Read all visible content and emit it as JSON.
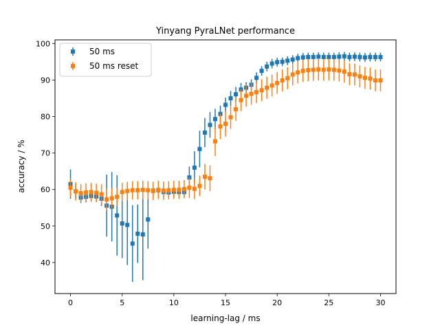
{
  "chart_data": {
    "type": "scatter",
    "title": "Yinyang PyraLNet performance",
    "xlabel": "learning-lag / ms",
    "ylabel": "accuracy / %",
    "xlim": [
      -1.5,
      31.5
    ],
    "ylim": [
      31.5,
      101
    ],
    "xticks": [
      0,
      5,
      10,
      15,
      20,
      25,
      30
    ],
    "yticks": [
      40,
      50,
      60,
      70,
      80,
      90,
      100
    ],
    "grid": false,
    "legend_position": "top-left",
    "series": [
      {
        "name": "50 ms",
        "color": "#1f77b4",
        "marker": "square",
        "x": [
          0,
          0.5,
          1,
          1.5,
          2,
          2.5,
          3,
          3.5,
          4,
          4.5,
          5,
          5.5,
          6,
          6.5,
          7,
          7.5,
          8,
          8.5,
          9,
          9.5,
          10,
          10.5,
          11,
          11.5,
          12,
          12.5,
          13,
          13.5,
          14,
          14.5,
          15,
          15.5,
          16,
          16.5,
          17,
          17.5,
          18,
          18.5,
          19,
          19.5,
          20,
          20.5,
          21,
          21.5,
          22,
          22.5,
          23,
          23.5,
          24,
          24.5,
          25,
          25.5,
          26,
          26.5,
          27,
          27.5,
          28,
          28.5,
          29,
          29.5,
          30
        ],
        "y": [
          61.5,
          59.5,
          57.8,
          58.0,
          58.2,
          58.1,
          57.5,
          55.6,
          55.3,
          52.9,
          50.7,
          50.3,
          45.2,
          47.9,
          47.7,
          51.8,
          59.7,
          59.8,
          59.3,
          59.2,
          59.4,
          59.3,
          59.3,
          63.3,
          66.0,
          71.1,
          75.6,
          77.7,
          79.3,
          80.7,
          83.2,
          85.0,
          86.1,
          87.4,
          87.9,
          88.7,
          90.6,
          92.5,
          93.7,
          94.5,
          94.9,
          95.0,
          95.3,
          95.6,
          96.0,
          96.2,
          96.3,
          96.3,
          96.4,
          96.3,
          96.3,
          96.3,
          96.4,
          96.5,
          96.3,
          96.4,
          96.3,
          96.2,
          96.3,
          96.3,
          96.3
        ],
        "err": [
          4.0,
          2.0,
          1.5,
          1.5,
          1.5,
          1.5,
          2.0,
          8.5,
          9.5,
          11.0,
          9.5,
          11.0,
          10.5,
          8.0,
          12.5,
          8.0,
          1.5,
          1.5,
          1.5,
          1.5,
          1.5,
          1.5,
          1.5,
          3.0,
          4.5,
          5.0,
          4.0,
          3.5,
          2.8,
          2.3,
          2.0,
          2.0,
          2.0,
          1.8,
          1.5,
          1.5,
          1.5,
          1.3,
          1.3,
          1.3,
          1.2,
          1.2,
          1.2,
          1.2,
          1.2,
          1.2,
          1.2,
          1.2,
          1.2,
          1.2,
          1.2,
          1.2,
          1.2,
          1.2,
          1.2,
          1.2,
          1.2,
          1.2,
          1.2,
          1.2,
          1.2
        ]
      },
      {
        "name": "50 ms reset",
        "color": "#ff7f0e",
        "marker": "square",
        "x": [
          0,
          0.5,
          1,
          1.5,
          2,
          2.5,
          3,
          3.5,
          4,
          4.5,
          5,
          5.5,
          6,
          6.5,
          7,
          7.5,
          8,
          8.5,
          9,
          9.5,
          10,
          10.5,
          11,
          11.5,
          12,
          12.5,
          13,
          13.5,
          14,
          14.5,
          15,
          15.5,
          16,
          16.5,
          17,
          17.5,
          18,
          18.5,
          19,
          19.5,
          20,
          20.5,
          21,
          21.5,
          22,
          22.5,
          23,
          23.5,
          24,
          24.5,
          25,
          25.5,
          26,
          26.5,
          27,
          27.5,
          28,
          28.5,
          29,
          29.5,
          30
        ],
        "y": [
          60.5,
          59.5,
          59.0,
          59.2,
          59.3,
          59.1,
          58.7,
          57.3,
          57.6,
          58.0,
          59.3,
          59.6,
          59.8,
          59.8,
          59.9,
          59.8,
          59.6,
          59.9,
          59.7,
          59.8,
          59.9,
          59.9,
          60.1,
          60.5,
          60.2,
          61.0,
          63.5,
          63.1,
          73.2,
          77.3,
          78.0,
          79.8,
          82.0,
          84.5,
          85.7,
          86.2,
          86.7,
          87.2,
          87.9,
          88.5,
          89.2,
          89.9,
          90.5,
          91.5,
          92.1,
          92.5,
          92.7,
          92.8,
          92.9,
          92.8,
          92.9,
          92.8,
          92.6,
          92.3,
          91.6,
          91.5,
          91.0,
          90.6,
          90.4,
          89.9,
          89.9
        ],
        "err": [
          2.5,
          2.5,
          2.5,
          2.5,
          2.5,
          2.5,
          2.8,
          3.0,
          2.8,
          2.5,
          2.5,
          2.5,
          2.5,
          2.5,
          2.5,
          2.5,
          2.5,
          2.5,
          2.5,
          2.5,
          2.5,
          2.5,
          2.5,
          2.8,
          2.8,
          2.8,
          3.5,
          3.5,
          4.0,
          3.5,
          3.5,
          3.2,
          3.2,
          3.0,
          3.0,
          3.0,
          3.0,
          3.0,
          3.0,
          3.0,
          3.0,
          3.0,
          3.0,
          3.0,
          3.0,
          3.0,
          3.0,
          3.0,
          3.0,
          3.0,
          3.0,
          3.0,
          3.0,
          3.0,
          3.0,
          3.0,
          3.0,
          3.0,
          3.0,
          3.0,
          3.0
        ]
      }
    ]
  }
}
